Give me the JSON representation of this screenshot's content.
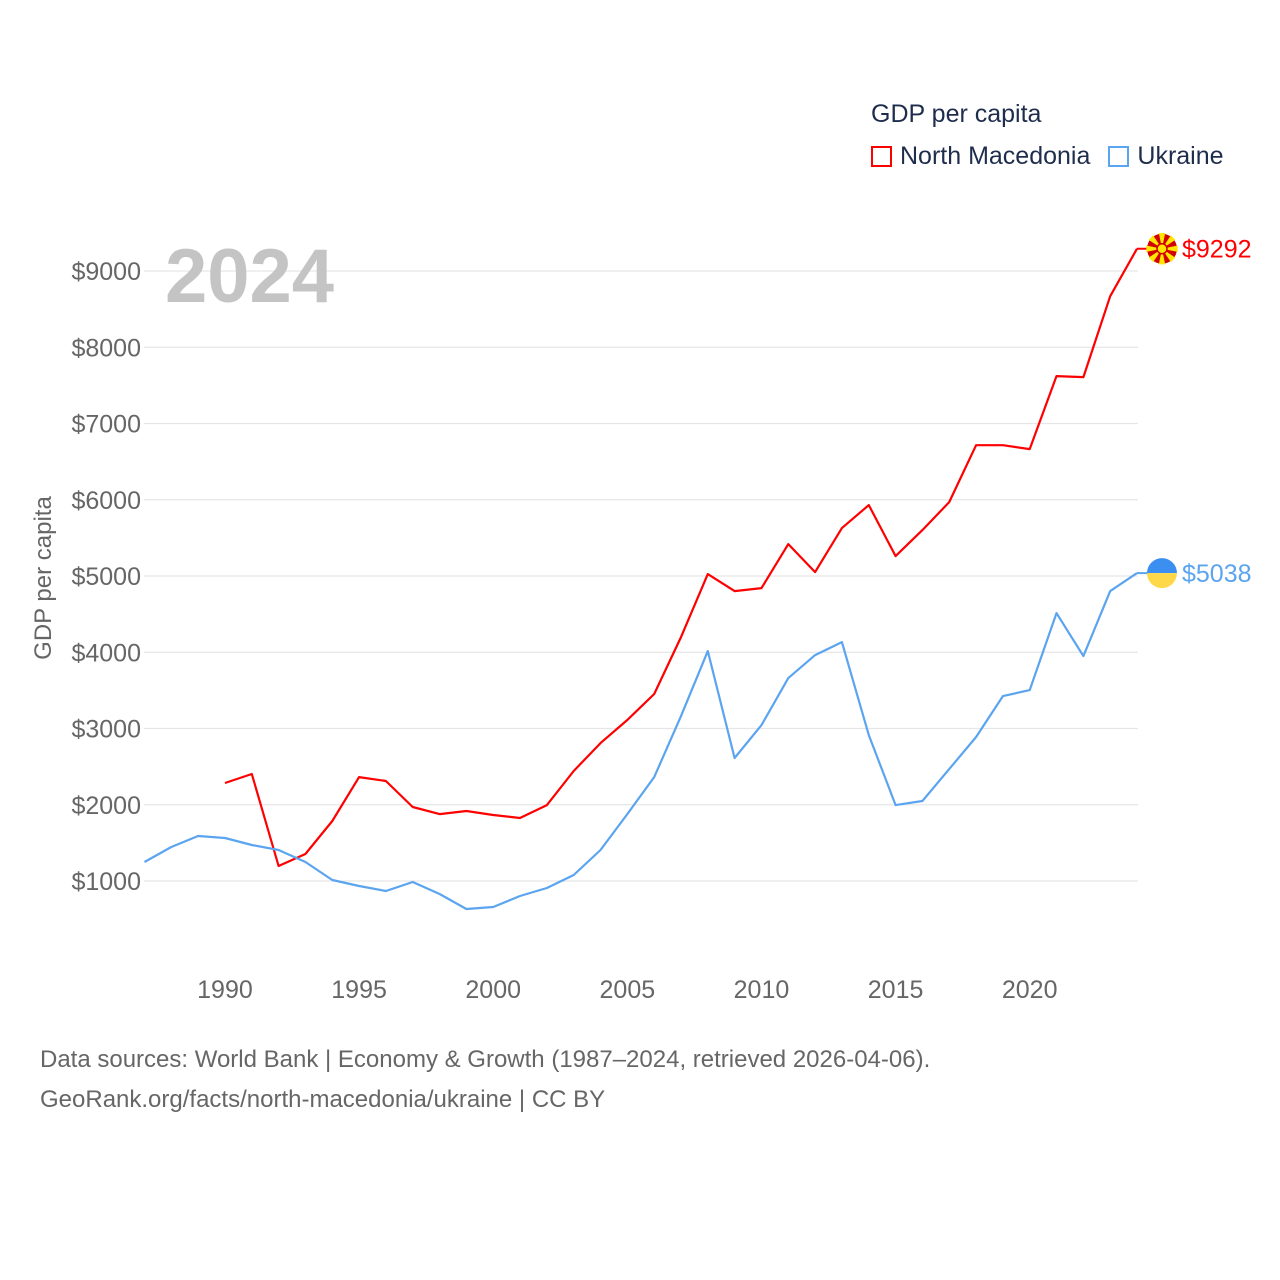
{
  "chart_data": {
    "type": "line",
    "title": "GDP per capita",
    "big_year_label": "2024",
    "ylabel": "GDP per capita",
    "xlabel": "",
    "xlim": [
      1987,
      2024
    ],
    "ylim": [
      0,
      9600
    ],
    "x_ticks": [
      1990,
      1995,
      2000,
      2005,
      2010,
      2015,
      2020
    ],
    "y_ticks": [
      1000,
      2000,
      3000,
      4000,
      5000,
      6000,
      7000,
      8000,
      9000
    ],
    "y_tick_labels": [
      "$1000",
      "$2000",
      "$3000",
      "$4000",
      "$5000",
      "$6000",
      "$7000",
      "$8000",
      "$9000"
    ],
    "grid": true,
    "legend_position": "top-right",
    "series": [
      {
        "name": "North Macedonia",
        "color": "#ff0000",
        "end_label": "$9292",
        "flag": "north-macedonia",
        "x": [
          1990,
          1991,
          1992,
          1993,
          1994,
          1995,
          1996,
          1997,
          1998,
          1999,
          2000,
          2001,
          2002,
          2003,
          2004,
          2005,
          2006,
          2007,
          2008,
          2009,
          2010,
          2011,
          2012,
          2013,
          2014,
          2015,
          2016,
          2017,
          2018,
          2019,
          2020,
          2021,
          2022,
          2023,
          2024
        ],
        "values": [
          2285,
          2403,
          1197,
          1354,
          1787,
          2363,
          2311,
          1970,
          1878,
          1918,
          1865,
          1826,
          1996,
          2442,
          2809,
          3111,
          3452,
          4199,
          5025,
          4802,
          4841,
          5418,
          5051,
          5628,
          5930,
          5261,
          5602,
          5969,
          6716,
          6716,
          6664,
          7621,
          7608,
          8670,
          9292
        ]
      },
      {
        "name": "Ukraine",
        "color": "#5ba4ef",
        "end_label": "$5038",
        "flag": "ukraine",
        "x": [
          1987,
          1988,
          1989,
          1990,
          1991,
          1992,
          1993,
          1994,
          1995,
          1996,
          1997,
          1998,
          1999,
          2000,
          2001,
          2002,
          2003,
          2004,
          2005,
          2006,
          2007,
          2008,
          2009,
          2010,
          2011,
          2012,
          2013,
          2014,
          2015,
          2016,
          2017,
          2018,
          2019,
          2020,
          2021,
          2022,
          2023,
          2024
        ],
        "values": [
          1249,
          1446,
          1590,
          1564,
          1472,
          1406,
          1249,
          1013,
          934,
          869,
          987,
          830,
          633,
          659,
          803,
          908,
          1079,
          1406,
          1878,
          2363,
          3163,
          4015,
          2613,
          3045,
          3661,
          3963,
          4133,
          2914,
          1996,
          2049,
          2468,
          2888,
          3425,
          3504,
          4513,
          3950,
          4802,
          5038
        ]
      }
    ]
  },
  "footer": {
    "line1": "Data sources: World Bank | Economy & Growth (1987–2024, retrieved 2026-04-06).",
    "line2": "GeoRank.org/facts/north-macedonia/ukraine | CC BY"
  }
}
